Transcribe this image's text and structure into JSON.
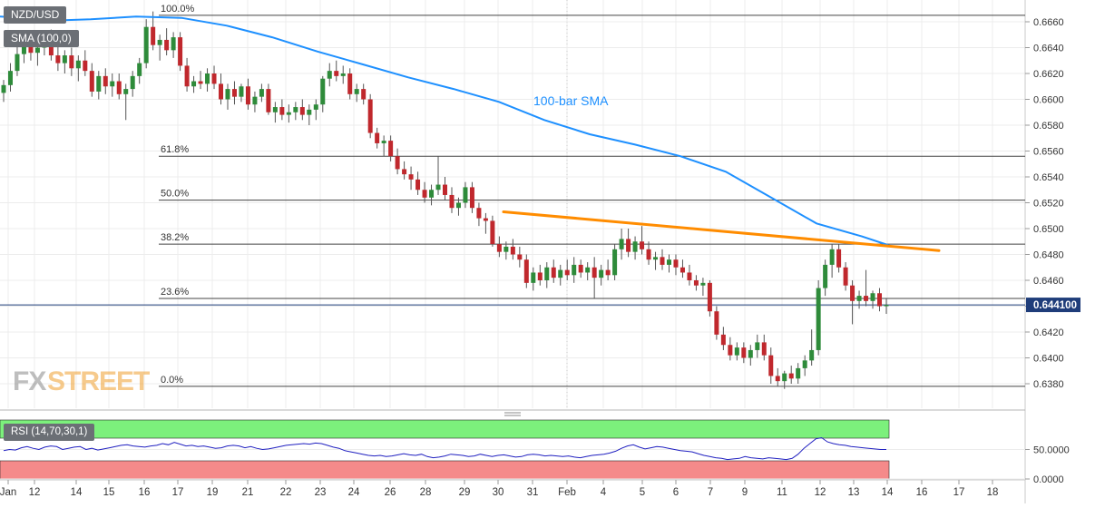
{
  "chart_data": {
    "type": "candlestick",
    "symbol": "NZD/USD",
    "indicator_label": "SMA (100,0)",
    "sma_label": "100-bar SMA",
    "price_axis": {
      "ylim": [
        0.637,
        0.6672
      ],
      "ticks": [
        "0.6660",
        "0.6640",
        "0.6620",
        "0.6600",
        "0.6580",
        "0.6560",
        "0.6540",
        "0.6520",
        "0.6500",
        "0.6480",
        "0.6460",
        "0.6440",
        "0.6420",
        "0.6400",
        "0.6380"
      ]
    },
    "current_price_label": "0.644100",
    "current_price": 0.6441,
    "fib_levels": [
      {
        "label": "100.0%",
        "price": 0.6665
      },
      {
        "label": "61.8%",
        "price": 0.6556
      },
      {
        "label": "50.0%",
        "price": 0.6522
      },
      {
        "label": "38.2%",
        "price": 0.6488
      },
      {
        "label": "23.6%",
        "price": 0.6446
      },
      {
        "label": "0.0%",
        "price": 0.6378
      }
    ],
    "x_labels": [
      "Jan",
      "12",
      "14",
      "15",
      "16",
      "17",
      "19",
      "21",
      "22",
      "23",
      "24",
      "26",
      "28",
      "29",
      "30",
      "31",
      "Feb",
      "4",
      "5",
      "6",
      "7",
      "9",
      "11",
      "12",
      "13",
      "14",
      "16",
      "17",
      "18"
    ],
    "candles": [
      [
        0.6605,
        0.6615,
        0.6598,
        0.6611
      ],
      [
        0.6611,
        0.6628,
        0.6606,
        0.6622
      ],
      [
        0.6622,
        0.6641,
        0.6618,
        0.6635
      ],
      [
        0.6635,
        0.6648,
        0.6628,
        0.6642
      ],
      [
        0.6642,
        0.665,
        0.663,
        0.6636
      ],
      [
        0.6636,
        0.6645,
        0.6626,
        0.664
      ],
      [
        0.664,
        0.6652,
        0.6634,
        0.6646
      ],
      [
        0.6646,
        0.6654,
        0.663,
        0.6634
      ],
      [
        0.6634,
        0.6642,
        0.6622,
        0.6628
      ],
      [
        0.6628,
        0.6638,
        0.662,
        0.6634
      ],
      [
        0.6634,
        0.664,
        0.6618,
        0.6624
      ],
      [
        0.6624,
        0.6634,
        0.6614,
        0.663
      ],
      [
        0.663,
        0.6638,
        0.6618,
        0.6622
      ],
      [
        0.6622,
        0.6628,
        0.6602,
        0.6606
      ],
      [
        0.6606,
        0.6622,
        0.66,
        0.6618
      ],
      [
        0.6618,
        0.6624,
        0.6604,
        0.661
      ],
      [
        0.661,
        0.662,
        0.6602,
        0.6614
      ],
      [
        0.6614,
        0.662,
        0.66,
        0.6604
      ],
      [
        0.6604,
        0.6612,
        0.6584,
        0.6608
      ],
      [
        0.6608,
        0.6622,
        0.6602,
        0.6618
      ],
      [
        0.6618,
        0.6632,
        0.6612,
        0.6628
      ],
      [
        0.6628,
        0.6662,
        0.6624,
        0.6656
      ],
      [
        0.6656,
        0.6668,
        0.6638,
        0.6642
      ],
      [
        0.6642,
        0.665,
        0.663,
        0.6646
      ],
      [
        0.6646,
        0.6655,
        0.6634,
        0.6638
      ],
      [
        0.6638,
        0.6652,
        0.6632,
        0.6648
      ],
      [
        0.6648,
        0.6652,
        0.6622,
        0.6626
      ],
      [
        0.6626,
        0.6632,
        0.6606,
        0.661
      ],
      [
        0.661,
        0.6618,
        0.6605,
        0.6614
      ],
      [
        0.6614,
        0.6622,
        0.6608,
        0.6612
      ],
      [
        0.6612,
        0.6624,
        0.6606,
        0.662
      ],
      [
        0.662,
        0.6626,
        0.6608,
        0.6612
      ],
      [
        0.6612,
        0.662,
        0.6596,
        0.66
      ],
      [
        0.66,
        0.6612,
        0.6592,
        0.6608
      ],
      [
        0.6608,
        0.6614,
        0.6596,
        0.6602
      ],
      [
        0.6602,
        0.6612,
        0.6598,
        0.661
      ],
      [
        0.661,
        0.6616,
        0.6592,
        0.6596
      ],
      [
        0.6596,
        0.6606,
        0.659,
        0.6602
      ],
      [
        0.6602,
        0.6612,
        0.6598,
        0.6608
      ],
      [
        0.6608,
        0.6612,
        0.6588,
        0.659
      ],
      [
        0.659,
        0.6598,
        0.6582,
        0.6594
      ],
      [
        0.6594,
        0.66,
        0.6584,
        0.6588
      ],
      [
        0.6588,
        0.6596,
        0.6582,
        0.659
      ],
      [
        0.659,
        0.6598,
        0.6584,
        0.6594
      ],
      [
        0.6594,
        0.66,
        0.6584,
        0.6588
      ],
      [
        0.6588,
        0.6596,
        0.658,
        0.6592
      ],
      [
        0.6592,
        0.66,
        0.6584,
        0.6596
      ],
      [
        0.6596,
        0.6618,
        0.659,
        0.6616
      ],
      [
        0.6616,
        0.6628,
        0.661,
        0.6622
      ],
      [
        0.6622,
        0.663,
        0.6614,
        0.6618
      ],
      [
        0.6618,
        0.6626,
        0.6612,
        0.662
      ],
      [
        0.662,
        0.6624,
        0.66,
        0.6604
      ],
      [
        0.6604,
        0.6612,
        0.6598,
        0.6608
      ],
      [
        0.6608,
        0.6612,
        0.6596,
        0.66
      ],
      [
        0.66,
        0.6604,
        0.657,
        0.6574
      ],
      [
        0.6574,
        0.6578,
        0.6562,
        0.6566
      ],
      [
        0.6566,
        0.6572,
        0.6556,
        0.6568
      ],
      [
        0.6568,
        0.6572,
        0.6552,
        0.6556
      ],
      [
        0.6556,
        0.6562,
        0.6542,
        0.6546
      ],
      [
        0.6546,
        0.6552,
        0.6538,
        0.6542
      ],
      [
        0.6542,
        0.6548,
        0.653,
        0.6538
      ],
      [
        0.6538,
        0.6544,
        0.6526,
        0.653
      ],
      [
        0.653,
        0.6536,
        0.652,
        0.6524
      ],
      [
        0.6524,
        0.6534,
        0.6518,
        0.653
      ],
      [
        0.653,
        0.6556,
        0.6526,
        0.6534
      ],
      [
        0.6534,
        0.654,
        0.6522,
        0.6526
      ],
      [
        0.6526,
        0.6532,
        0.6512,
        0.6516
      ],
      [
        0.6516,
        0.6524,
        0.651,
        0.652
      ],
      [
        0.652,
        0.6536,
        0.6516,
        0.6532
      ],
      [
        0.6532,
        0.6536,
        0.6512,
        0.6516
      ],
      [
        0.6516,
        0.652,
        0.6502,
        0.6508
      ],
      [
        0.6508,
        0.6512,
        0.6496,
        0.6506
      ],
      [
        0.6506,
        0.651,
        0.6486,
        0.6488
      ],
      [
        0.6488,
        0.6494,
        0.6478,
        0.6482
      ],
      [
        0.6482,
        0.649,
        0.6476,
        0.6486
      ],
      [
        0.6486,
        0.6492,
        0.6476,
        0.648
      ],
      [
        0.648,
        0.6486,
        0.647,
        0.6476
      ],
      [
        0.6476,
        0.648,
        0.6454,
        0.6458
      ],
      [
        0.6458,
        0.647,
        0.6452,
        0.6466
      ],
      [
        0.6466,
        0.6472,
        0.6456,
        0.646
      ],
      [
        0.646,
        0.6474,
        0.6454,
        0.647
      ],
      [
        0.647,
        0.6476,
        0.6458,
        0.6462
      ],
      [
        0.6462,
        0.6472,
        0.6456,
        0.6468
      ],
      [
        0.6468,
        0.6476,
        0.646,
        0.6464
      ],
      [
        0.6464,
        0.6478,
        0.6458,
        0.6472
      ],
      [
        0.6472,
        0.6476,
        0.6462,
        0.6466
      ],
      [
        0.6466,
        0.6474,
        0.646,
        0.647
      ],
      [
        0.647,
        0.6478,
        0.6446,
        0.6462
      ],
      [
        0.6462,
        0.6472,
        0.6456,
        0.6468
      ],
      [
        0.6468,
        0.6476,
        0.646,
        0.6464
      ],
      [
        0.6464,
        0.6488,
        0.646,
        0.6484
      ],
      [
        0.6484,
        0.65,
        0.6476,
        0.6492
      ],
      [
        0.6492,
        0.65,
        0.6478,
        0.6482
      ],
      [
        0.6482,
        0.6494,
        0.6476,
        0.649
      ],
      [
        0.649,
        0.6502,
        0.648,
        0.6484
      ],
      [
        0.6484,
        0.649,
        0.6472,
        0.6476
      ],
      [
        0.6476,
        0.6482,
        0.6468,
        0.6478
      ],
      [
        0.6478,
        0.6484,
        0.6468,
        0.6472
      ],
      [
        0.6472,
        0.648,
        0.6466,
        0.6476
      ],
      [
        0.6476,
        0.648,
        0.6464,
        0.647
      ],
      [
        0.647,
        0.6476,
        0.6462,
        0.6466
      ],
      [
        0.6466,
        0.6472,
        0.6456,
        0.646
      ],
      [
        0.646,
        0.6464,
        0.6452,
        0.6456
      ],
      [
        0.6456,
        0.6462,
        0.6448,
        0.6458
      ],
      [
        0.6458,
        0.646,
        0.6432,
        0.6436
      ],
      [
        0.6436,
        0.644,
        0.6414,
        0.6418
      ],
      [
        0.6418,
        0.6424,
        0.6406,
        0.641
      ],
      [
        0.641,
        0.6416,
        0.6398,
        0.6402
      ],
      [
        0.6402,
        0.6412,
        0.6398,
        0.6408
      ],
      [
        0.6408,
        0.6412,
        0.6396,
        0.64
      ],
      [
        0.64,
        0.641,
        0.6394,
        0.6406
      ],
      [
        0.6406,
        0.6418,
        0.64,
        0.6412
      ],
      [
        0.6412,
        0.6418,
        0.6398,
        0.6402
      ],
      [
        0.6402,
        0.6408,
        0.638,
        0.6386
      ],
      [
        0.6386,
        0.6392,
        0.6378,
        0.6382
      ],
      [
        0.6382,
        0.639,
        0.6376,
        0.6388
      ],
      [
        0.6388,
        0.6394,
        0.638,
        0.6384
      ],
      [
        0.6384,
        0.6396,
        0.638,
        0.6392
      ],
      [
        0.6392,
        0.6402,
        0.6386,
        0.6398
      ],
      [
        0.6398,
        0.6422,
        0.6394,
        0.6406
      ],
      [
        0.6406,
        0.646,
        0.6402,
        0.6454
      ],
      [
        0.6454,
        0.6476,
        0.6448,
        0.6472
      ],
      [
        0.6472,
        0.6488,
        0.6462,
        0.6484
      ],
      [
        0.6484,
        0.6488,
        0.6466,
        0.647
      ],
      [
        0.647,
        0.6474,
        0.6452,
        0.6456
      ],
      [
        0.6456,
        0.646,
        0.6426,
        0.6444
      ],
      [
        0.6444,
        0.6452,
        0.6438,
        0.6448
      ],
      [
        0.6448,
        0.6468,
        0.644,
        0.6444
      ],
      [
        0.6444,
        0.6452,
        0.6438,
        0.645
      ],
      [
        0.645,
        0.6454,
        0.6436,
        0.644
      ],
      [
        0.644,
        0.6446,
        0.6434,
        0.6441
      ]
    ],
    "sma_points": [
      [
        0,
        0.6664
      ],
      [
        30,
        0.6663
      ],
      [
        60,
        0.6661
      ],
      [
        100,
        0.6662
      ],
      [
        150,
        0.6664
      ],
      [
        200,
        0.6663
      ],
      [
        250,
        0.6657
      ],
      [
        300,
        0.6648
      ],
      [
        350,
        0.6637
      ],
      [
        400,
        0.6627
      ],
      [
        450,
        0.6617
      ],
      [
        500,
        0.6608
      ],
      [
        550,
        0.6598
      ],
      [
        600,
        0.6584
      ],
      [
        650,
        0.6573
      ],
      [
        700,
        0.6565
      ],
      [
        750,
        0.6556
      ],
      [
        800,
        0.6544
      ],
      [
        850,
        0.6524
      ],
      [
        900,
        0.6504
      ],
      [
        950,
        0.6494
      ],
      [
        980,
        0.6487
      ]
    ],
    "trendline": {
      "start": [
        555,
        0.6513
      ],
      "end": [
        1035,
        0.6483
      ]
    },
    "rsi": {
      "label": "RSI (14,70,30,1)",
      "ylim": [
        0,
        100
      ],
      "overbought": 70,
      "oversold": 30,
      "ticks": [
        "50.0000",
        "0.0000"
      ],
      "values": [
        48,
        50,
        49,
        53,
        55,
        52,
        50,
        54,
        56,
        55,
        50,
        52,
        54,
        55,
        50,
        52,
        49,
        51,
        53,
        55,
        57,
        58,
        56,
        55,
        54,
        56,
        57,
        60,
        58,
        62,
        59,
        56,
        57,
        55,
        56,
        54,
        52,
        53,
        56,
        57,
        56,
        53,
        55,
        52,
        50,
        51,
        53,
        55,
        57,
        58,
        59,
        60,
        59,
        61,
        60,
        57,
        54,
        52,
        48,
        46,
        44,
        42,
        40,
        39,
        40,
        38,
        39,
        41,
        43,
        41,
        40,
        42,
        38,
        36,
        37,
        39,
        42,
        41,
        40,
        38,
        39,
        42,
        40,
        38,
        40,
        41,
        39,
        37,
        38,
        41,
        42,
        41,
        39,
        40,
        39,
        38,
        39,
        37,
        36,
        38,
        40,
        41,
        42,
        44,
        47,
        52,
        56,
        58,
        54,
        51,
        53,
        55,
        54,
        52,
        50,
        48,
        47,
        46,
        43,
        40,
        38,
        36,
        35,
        33,
        34,
        35,
        38,
        36,
        35,
        34,
        36,
        35,
        34,
        33,
        35,
        42,
        52,
        60,
        68,
        70,
        63,
        60,
        58,
        57,
        55,
        54,
        53,
        52,
        51,
        50,
        50
      ]
    }
  }
}
